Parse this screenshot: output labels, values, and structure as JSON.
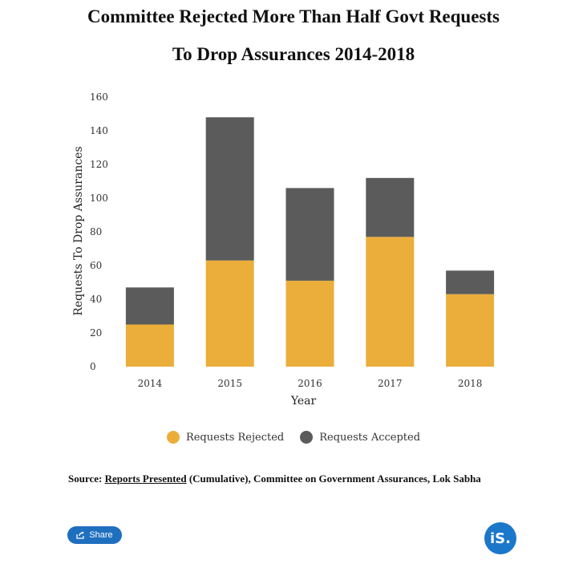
{
  "title_line1": "Committee Rejected More Than Half Govt Requests",
  "title_line2": "To Drop Assurances 2014-2018",
  "legend": {
    "rejected": "Requests Rejected",
    "accepted": "Requests Accepted"
  },
  "source": {
    "prefix": "Source: ",
    "link": "Reports Presented",
    "suffix": " (Cumulative), Committee on Government Assurances, Lok Sabha"
  },
  "share_label": "Share",
  "logo_text": "iS.",
  "colors": {
    "rejected": "#EBAE3A",
    "accepted": "#5B5B5B"
  },
  "chart_data": {
    "type": "bar",
    "stacked": true,
    "categories": [
      "2014",
      "2015",
      "2016",
      "2017",
      "2018"
    ],
    "series": [
      {
        "name": "Requests Rejected",
        "values": [
          25,
          63,
          51,
          77,
          43
        ]
      },
      {
        "name": "Requests Accepted",
        "values": [
          22,
          85,
          55,
          35,
          14
        ]
      }
    ],
    "xlabel": "Year",
    "ylabel": "Requests To Drop Assurances",
    "ylim": [
      0,
      160
    ],
    "yticks": [
      0,
      20,
      40,
      60,
      80,
      100,
      120,
      140,
      160
    ],
    "legend_position": "bottom"
  }
}
